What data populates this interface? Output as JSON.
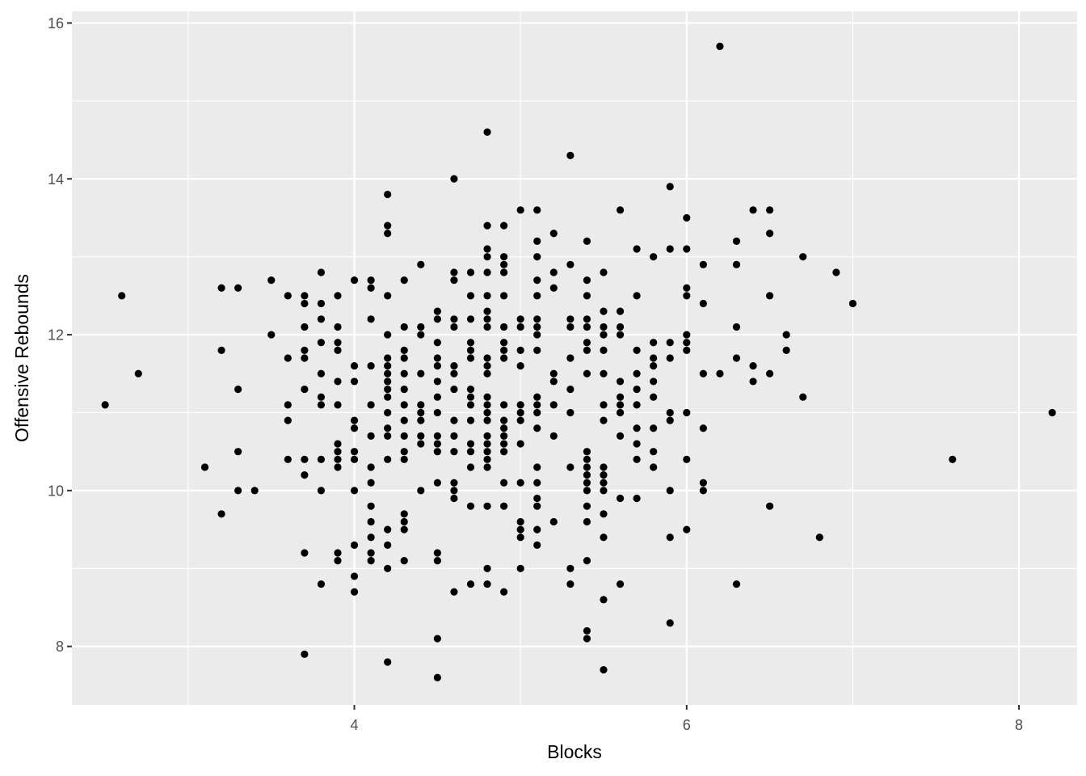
{
  "chart_data": {
    "type": "scatter",
    "title": "",
    "xlabel": "Blocks",
    "ylabel": "Offensive Rebounds",
    "xlim": [
      2.3,
      8.35
    ],
    "ylim": [
      7.25,
      16.15
    ],
    "x_ticks": [
      4,
      6,
      8
    ],
    "y_ticks": [
      8,
      10,
      12,
      14,
      16
    ],
    "x_tick_labels": [
      "4",
      "6",
      "8"
    ],
    "y_tick_labels": [
      "8",
      "10",
      "12",
      "14",
      "16"
    ],
    "grid": true,
    "legend": "none",
    "colors": {
      "panel": "#ebebeb",
      "grid": "#ffffff",
      "point": "#000000"
    },
    "points": [
      [
        2.5,
        11.1
      ],
      [
        2.6,
        12.5
      ],
      [
        2.7,
        11.5
      ],
      [
        3.1,
        10.3
      ],
      [
        3.2,
        12.6
      ],
      [
        3.2,
        11.8
      ],
      [
        3.2,
        9.7
      ],
      [
        3.3,
        12.6
      ],
      [
        3.3,
        11.3
      ],
      [
        3.3,
        10.5
      ],
      [
        3.3,
        10.0
      ],
      [
        3.4,
        10.0
      ],
      [
        3.5,
        12.7
      ],
      [
        3.5,
        12.0
      ],
      [
        3.6,
        12.5
      ],
      [
        3.6,
        11.7
      ],
      [
        3.6,
        11.1
      ],
      [
        3.6,
        10.9
      ],
      [
        3.6,
        10.4
      ],
      [
        3.7,
        12.5
      ],
      [
        3.7,
        12.4
      ],
      [
        3.7,
        12.1
      ],
      [
        3.7,
        11.8
      ],
      [
        3.7,
        11.7
      ],
      [
        3.7,
        11.3
      ],
      [
        3.7,
        10.4
      ],
      [
        3.7,
        10.2
      ],
      [
        3.7,
        9.2
      ],
      [
        3.7,
        7.9
      ],
      [
        3.8,
        12.8
      ],
      [
        3.8,
        12.4
      ],
      [
        3.8,
        12.2
      ],
      [
        3.8,
        11.9
      ],
      [
        3.8,
        11.5
      ],
      [
        3.8,
        11.2
      ],
      [
        3.8,
        11.1
      ],
      [
        3.8,
        10.4
      ],
      [
        3.8,
        10.0
      ],
      [
        3.8,
        8.8
      ],
      [
        3.9,
        12.5
      ],
      [
        3.9,
        12.1
      ],
      [
        3.9,
        11.9
      ],
      [
        3.9,
        11.8
      ],
      [
        3.9,
        11.4
      ],
      [
        3.9,
        11.1
      ],
      [
        3.9,
        10.6
      ],
      [
        3.9,
        10.5
      ],
      [
        3.9,
        10.4
      ],
      [
        3.9,
        10.3
      ],
      [
        3.9,
        9.2
      ],
      [
        3.9,
        9.1
      ],
      [
        4.0,
        12.7
      ],
      [
        4.0,
        11.6
      ],
      [
        4.0,
        11.4
      ],
      [
        4.0,
        10.9
      ],
      [
        4.0,
        10.8
      ],
      [
        4.0,
        10.5
      ],
      [
        4.0,
        10.4
      ],
      [
        4.0,
        10.0
      ],
      [
        4.0,
        9.3
      ],
      [
        4.0,
        8.9
      ],
      [
        4.0,
        8.7
      ],
      [
        4.1,
        12.7
      ],
      [
        4.1,
        12.6
      ],
      [
        4.1,
        12.2
      ],
      [
        4.1,
        11.6
      ],
      [
        4.1,
        11.1
      ],
      [
        4.1,
        10.7
      ],
      [
        4.1,
        10.3
      ],
      [
        4.1,
        10.1
      ],
      [
        4.1,
        9.8
      ],
      [
        4.1,
        9.6
      ],
      [
        4.1,
        9.4
      ],
      [
        4.1,
        9.2
      ],
      [
        4.1,
        9.1
      ],
      [
        4.2,
        13.8
      ],
      [
        4.2,
        13.4
      ],
      [
        4.2,
        13.3
      ],
      [
        4.2,
        12.5
      ],
      [
        4.2,
        12.0
      ],
      [
        4.2,
        11.7
      ],
      [
        4.2,
        11.6
      ],
      [
        4.2,
        11.5
      ],
      [
        4.2,
        11.4
      ],
      [
        4.2,
        11.3
      ],
      [
        4.2,
        11.2
      ],
      [
        4.2,
        11.0
      ],
      [
        4.2,
        10.8
      ],
      [
        4.2,
        10.7
      ],
      [
        4.2,
        10.4
      ],
      [
        4.2,
        9.5
      ],
      [
        4.2,
        9.3
      ],
      [
        4.2,
        9.0
      ],
      [
        4.2,
        7.8
      ],
      [
        4.3,
        12.7
      ],
      [
        4.3,
        12.1
      ],
      [
        4.3,
        11.8
      ],
      [
        4.3,
        11.7
      ],
      [
        4.3,
        11.5
      ],
      [
        4.3,
        11.3
      ],
      [
        4.3,
        11.1
      ],
      [
        4.3,
        10.9
      ],
      [
        4.3,
        10.7
      ],
      [
        4.3,
        10.5
      ],
      [
        4.3,
        10.4
      ],
      [
        4.3,
        9.7
      ],
      [
        4.3,
        9.6
      ],
      [
        4.3,
        9.5
      ],
      [
        4.3,
        9.1
      ],
      [
        4.4,
        12.9
      ],
      [
        4.4,
        12.1
      ],
      [
        4.4,
        12.0
      ],
      [
        4.4,
        11.5
      ],
      [
        4.4,
        11.1
      ],
      [
        4.4,
        11.0
      ],
      [
        4.4,
        10.9
      ],
      [
        4.4,
        10.7
      ],
      [
        4.4,
        10.6
      ],
      [
        4.4,
        10.0
      ],
      [
        4.5,
        12.3
      ],
      [
        4.5,
        12.2
      ],
      [
        4.5,
        11.9
      ],
      [
        4.5,
        11.7
      ],
      [
        4.5,
        11.6
      ],
      [
        4.5,
        11.4
      ],
      [
        4.5,
        11.2
      ],
      [
        4.5,
        11.0
      ],
      [
        4.5,
        10.7
      ],
      [
        4.5,
        10.6
      ],
      [
        4.5,
        10.5
      ],
      [
        4.5,
        10.1
      ],
      [
        4.5,
        9.2
      ],
      [
        4.5,
        9.1
      ],
      [
        4.5,
        8.1
      ],
      [
        4.5,
        7.6
      ],
      [
        4.6,
        14.0
      ],
      [
        4.6,
        12.8
      ],
      [
        4.6,
        12.7
      ],
      [
        4.6,
        12.2
      ],
      [
        4.6,
        12.1
      ],
      [
        4.6,
        11.6
      ],
      [
        4.6,
        11.5
      ],
      [
        4.6,
        11.3
      ],
      [
        4.6,
        10.9
      ],
      [
        4.6,
        10.7
      ],
      [
        4.6,
        10.5
      ],
      [
        4.6,
        10.1
      ],
      [
        4.6,
        10.0
      ],
      [
        4.6,
        9.9
      ],
      [
        4.6,
        8.7
      ],
      [
        4.7,
        12.8
      ],
      [
        4.7,
        12.5
      ],
      [
        4.7,
        12.2
      ],
      [
        4.7,
        11.9
      ],
      [
        4.7,
        11.8
      ],
      [
        4.7,
        11.7
      ],
      [
        4.7,
        11.3
      ],
      [
        4.7,
        11.2
      ],
      [
        4.7,
        11.1
      ],
      [
        4.7,
        10.9
      ],
      [
        4.7,
        10.6
      ],
      [
        4.7,
        10.5
      ],
      [
        4.7,
        10.3
      ],
      [
        4.7,
        9.8
      ],
      [
        4.7,
        8.8
      ],
      [
        4.8,
        14.6
      ],
      [
        4.8,
        13.4
      ],
      [
        4.8,
        13.1
      ],
      [
        4.8,
        13.0
      ],
      [
        4.8,
        12.8
      ],
      [
        4.8,
        12.5
      ],
      [
        4.8,
        12.3
      ],
      [
        4.8,
        12.2
      ],
      [
        4.8,
        12.1
      ],
      [
        4.8,
        11.7
      ],
      [
        4.8,
        11.6
      ],
      [
        4.8,
        11.5
      ],
      [
        4.8,
        11.2
      ],
      [
        4.8,
        11.1
      ],
      [
        4.8,
        11.0
      ],
      [
        4.8,
        10.9
      ],
      [
        4.8,
        10.7
      ],
      [
        4.8,
        10.6
      ],
      [
        4.8,
        10.5
      ],
      [
        4.8,
        10.4
      ],
      [
        4.8,
        10.3
      ],
      [
        4.8,
        9.8
      ],
      [
        4.8,
        9.0
      ],
      [
        4.8,
        8.8
      ],
      [
        4.9,
        13.4
      ],
      [
        4.9,
        13.0
      ],
      [
        4.9,
        12.9
      ],
      [
        4.9,
        12.8
      ],
      [
        4.9,
        12.5
      ],
      [
        4.9,
        12.1
      ],
      [
        4.9,
        11.9
      ],
      [
        4.9,
        11.8
      ],
      [
        4.9,
        11.7
      ],
      [
        4.9,
        11.1
      ],
      [
        4.9,
        10.9
      ],
      [
        4.9,
        10.8
      ],
      [
        4.9,
        10.7
      ],
      [
        4.9,
        10.6
      ],
      [
        4.9,
        10.5
      ],
      [
        4.9,
        10.1
      ],
      [
        4.9,
        9.8
      ],
      [
        4.9,
        8.7
      ],
      [
        5.0,
        13.6
      ],
      [
        5.0,
        12.2
      ],
      [
        5.0,
        12.1
      ],
      [
        5.0,
        11.8
      ],
      [
        5.0,
        11.6
      ],
      [
        5.0,
        11.1
      ],
      [
        5.0,
        11.0
      ],
      [
        5.0,
        10.9
      ],
      [
        5.0,
        10.6
      ],
      [
        5.0,
        10.1
      ],
      [
        5.0,
        9.6
      ],
      [
        5.0,
        9.5
      ],
      [
        5.0,
        9.4
      ],
      [
        5.0,
        9.0
      ],
      [
        5.1,
        13.6
      ],
      [
        5.1,
        13.2
      ],
      [
        5.1,
        13.0
      ],
      [
        5.1,
        12.7
      ],
      [
        5.1,
        12.5
      ],
      [
        5.1,
        12.2
      ],
      [
        5.1,
        12.1
      ],
      [
        5.1,
        12.0
      ],
      [
        5.1,
        11.8
      ],
      [
        5.1,
        11.2
      ],
      [
        5.1,
        11.1
      ],
      [
        5.1,
        11.0
      ],
      [
        5.1,
        10.8
      ],
      [
        5.1,
        10.3
      ],
      [
        5.1,
        10.1
      ],
      [
        5.1,
        9.9
      ],
      [
        5.1,
        9.8
      ],
      [
        5.1,
        9.5
      ],
      [
        5.1,
        9.3
      ],
      [
        5.2,
        13.3
      ],
      [
        5.2,
        12.8
      ],
      [
        5.2,
        12.6
      ],
      [
        5.2,
        11.5
      ],
      [
        5.2,
        11.4
      ],
      [
        5.2,
        11.1
      ],
      [
        5.2,
        10.7
      ],
      [
        5.2,
        9.6
      ],
      [
        5.3,
        14.3
      ],
      [
        5.3,
        12.9
      ],
      [
        5.3,
        12.2
      ],
      [
        5.3,
        12.1
      ],
      [
        5.3,
        11.7
      ],
      [
        5.3,
        11.3
      ],
      [
        5.3,
        11.0
      ],
      [
        5.3,
        10.3
      ],
      [
        5.3,
        9.0
      ],
      [
        5.3,
        8.8
      ],
      [
        5.4,
        13.2
      ],
      [
        5.4,
        12.7
      ],
      [
        5.4,
        12.5
      ],
      [
        5.4,
        12.2
      ],
      [
        5.4,
        12.1
      ],
      [
        5.4,
        11.9
      ],
      [
        5.4,
        11.8
      ],
      [
        5.4,
        11.5
      ],
      [
        5.4,
        10.5
      ],
      [
        5.4,
        10.4
      ],
      [
        5.4,
        10.3
      ],
      [
        5.4,
        10.2
      ],
      [
        5.4,
        10.1
      ],
      [
        5.4,
        10.0
      ],
      [
        5.4,
        9.8
      ],
      [
        5.4,
        9.6
      ],
      [
        5.4,
        9.1
      ],
      [
        5.4,
        8.2
      ],
      [
        5.4,
        8.1
      ],
      [
        5.5,
        12.8
      ],
      [
        5.5,
        12.3
      ],
      [
        5.5,
        12.1
      ],
      [
        5.5,
        12.0
      ],
      [
        5.5,
        11.8
      ],
      [
        5.5,
        11.5
      ],
      [
        5.5,
        11.1
      ],
      [
        5.5,
        10.9
      ],
      [
        5.5,
        10.3
      ],
      [
        5.5,
        10.2
      ],
      [
        5.5,
        10.1
      ],
      [
        5.5,
        10.0
      ],
      [
        5.5,
        9.7
      ],
      [
        5.5,
        9.4
      ],
      [
        5.5,
        8.6
      ],
      [
        5.5,
        7.7
      ],
      [
        5.6,
        13.6
      ],
      [
        5.6,
        12.3
      ],
      [
        5.6,
        12.1
      ],
      [
        5.6,
        12.0
      ],
      [
        5.6,
        11.4
      ],
      [
        5.6,
        11.2
      ],
      [
        5.6,
        11.1
      ],
      [
        5.6,
        11.0
      ],
      [
        5.6,
        10.7
      ],
      [
        5.6,
        9.9
      ],
      [
        5.6,
        8.8
      ],
      [
        5.7,
        13.1
      ],
      [
        5.7,
        12.5
      ],
      [
        5.7,
        11.8
      ],
      [
        5.7,
        11.5
      ],
      [
        5.7,
        11.3
      ],
      [
        5.7,
        11.1
      ],
      [
        5.7,
        10.8
      ],
      [
        5.7,
        10.6
      ],
      [
        5.7,
        10.4
      ],
      [
        5.7,
        9.9
      ],
      [
        5.8,
        13.0
      ],
      [
        5.8,
        11.9
      ],
      [
        5.8,
        11.7
      ],
      [
        5.8,
        11.6
      ],
      [
        5.8,
        11.4
      ],
      [
        5.8,
        11.2
      ],
      [
        5.8,
        10.8
      ],
      [
        5.8,
        10.5
      ],
      [
        5.8,
        10.3
      ],
      [
        5.9,
        13.9
      ],
      [
        5.9,
        13.1
      ],
      [
        5.9,
        11.9
      ],
      [
        5.9,
        11.7
      ],
      [
        5.9,
        11.0
      ],
      [
        5.9,
        10.9
      ],
      [
        5.9,
        10.0
      ],
      [
        5.9,
        9.4
      ],
      [
        5.9,
        8.3
      ],
      [
        6.0,
        13.5
      ],
      [
        6.0,
        13.1
      ],
      [
        6.0,
        12.6
      ],
      [
        6.0,
        12.5
      ],
      [
        6.0,
        12.0
      ],
      [
        6.0,
        11.9
      ],
      [
        6.0,
        11.8
      ],
      [
        6.0,
        11.0
      ],
      [
        6.0,
        10.4
      ],
      [
        6.0,
        9.5
      ],
      [
        6.1,
        12.9
      ],
      [
        6.1,
        12.4
      ],
      [
        6.1,
        11.5
      ],
      [
        6.1,
        10.8
      ],
      [
        6.1,
        10.1
      ],
      [
        6.1,
        10.0
      ],
      [
        6.2,
        15.7
      ],
      [
        6.2,
        11.5
      ],
      [
        6.3,
        13.2
      ],
      [
        6.3,
        12.9
      ],
      [
        6.3,
        12.1
      ],
      [
        6.3,
        11.7
      ],
      [
        6.3,
        8.8
      ],
      [
        6.4,
        13.6
      ],
      [
        6.4,
        11.6
      ],
      [
        6.4,
        11.4
      ],
      [
        6.5,
        13.6
      ],
      [
        6.5,
        13.3
      ],
      [
        6.5,
        12.5
      ],
      [
        6.5,
        11.5
      ],
      [
        6.5,
        9.8
      ],
      [
        6.6,
        12.0
      ],
      [
        6.6,
        11.8
      ],
      [
        6.7,
        13.0
      ],
      [
        6.7,
        11.2
      ],
      [
        6.8,
        9.4
      ],
      [
        6.9,
        12.8
      ],
      [
        7.0,
        12.4
      ],
      [
        7.6,
        10.4
      ],
      [
        8.2,
        11.0
      ]
    ]
  }
}
